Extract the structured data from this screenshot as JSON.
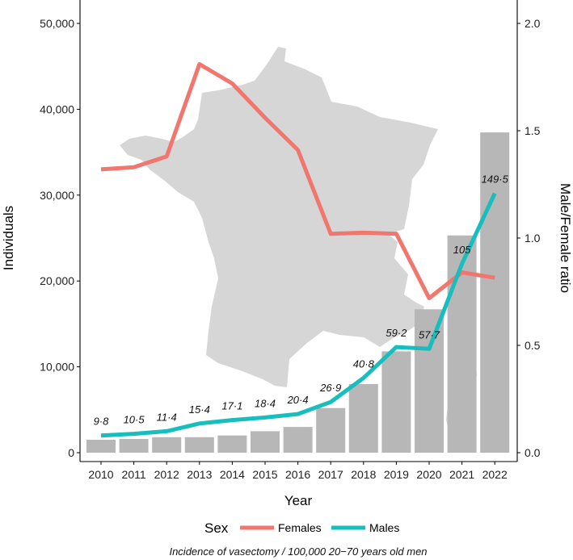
{
  "chart_data": {
    "type": "bar",
    "xlabel": "Year",
    "ylabel": "Individuals",
    "y2label": "Male/Female ratio",
    "categories": [
      "2010",
      "2011",
      "2012",
      "2013",
      "2014",
      "2015",
      "2016",
      "2017",
      "2018",
      "2019",
      "2020",
      "2021",
      "2022"
    ],
    "bars": {
      "values": [
        1500,
        1600,
        1800,
        1800,
        2000,
        2500,
        3000,
        5200,
        8000,
        11800,
        16700,
        25300,
        37300
      ],
      "labels": [
        "9·8",
        "10·5",
        "11·4",
        "15·4",
        "17·1",
        "18·4",
        "20·4",
        "26·9",
        "40·8",
        "59·2",
        "57·7",
        "105",
        "149·5"
      ],
      "color": "#b7b7b7"
    },
    "ylim": [
      0,
      52000
    ],
    "yticks": [
      0,
      10000,
      20000,
      30000,
      40000,
      50000
    ],
    "ytick_labels": [
      "0",
      "10,000",
      "20,000",
      "30,000",
      "40,000",
      "50,000"
    ],
    "y2lim": [
      0,
      2.08
    ],
    "y2ticks": [
      0.0,
      0.5,
      1.0,
      1.5,
      2.0
    ],
    "y2tick_labels": [
      "0.0",
      "0.5",
      "1.0",
      "1.5",
      "2.0"
    ],
    "series": [
      {
        "name": "Females",
        "color": "#f0766e",
        "axis": "right",
        "values": [
          1.32,
          1.33,
          1.38,
          1.81,
          1.72,
          1.56,
          1.41,
          1.02,
          1.025,
          1.02,
          0.72,
          0.84,
          0.815
        ]
      },
      {
        "name": "Males",
        "color": "#18bdbd",
        "axis": "left",
        "values": [
          2000,
          2200,
          2500,
          3400,
          3800,
          4100,
          4500,
          5900,
          8700,
          12300,
          12100,
          22000,
          30200
        ]
      }
    ],
    "legend": {
      "title": "Sex",
      "position": "bottom"
    },
    "caption": "Incidence of vasectomy / 100,000 20−70 years old men",
    "background_image": "france-map-silhouette",
    "grid": false
  }
}
